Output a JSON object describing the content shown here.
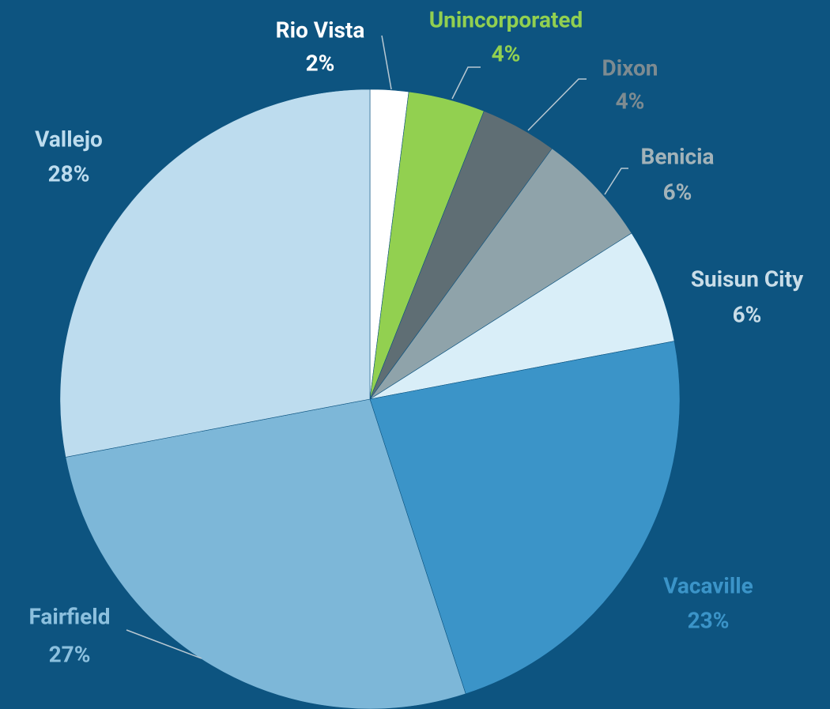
{
  "chart_data": {
    "type": "pie",
    "categories": [
      "Rio Vista",
      "Unincorporated",
      "Dixon",
      "Benicia",
      "Suisun City",
      "Vacaville",
      "Fairfield",
      "Vallejo"
    ],
    "values": [
      2,
      4,
      4,
      6,
      6,
      23,
      27,
      28
    ],
    "value_labels": [
      "2%",
      "4%",
      "4%",
      "6%",
      "6%",
      "23%",
      "27%",
      "28%"
    ],
    "colors": [
      "#ffffff",
      "#92d050",
      "#5f6e74",
      "#8fa3aa",
      "#d9eef8",
      "#3b94c8",
      "#7db7d8",
      "#bddcee"
    ],
    "label_colors": [
      "#ffffff",
      "#92d050",
      "#7d8b91",
      "#a3b3b9",
      "#c9dde8",
      "#3b94c8",
      "#8cc0de",
      "#bddcee"
    ]
  }
}
